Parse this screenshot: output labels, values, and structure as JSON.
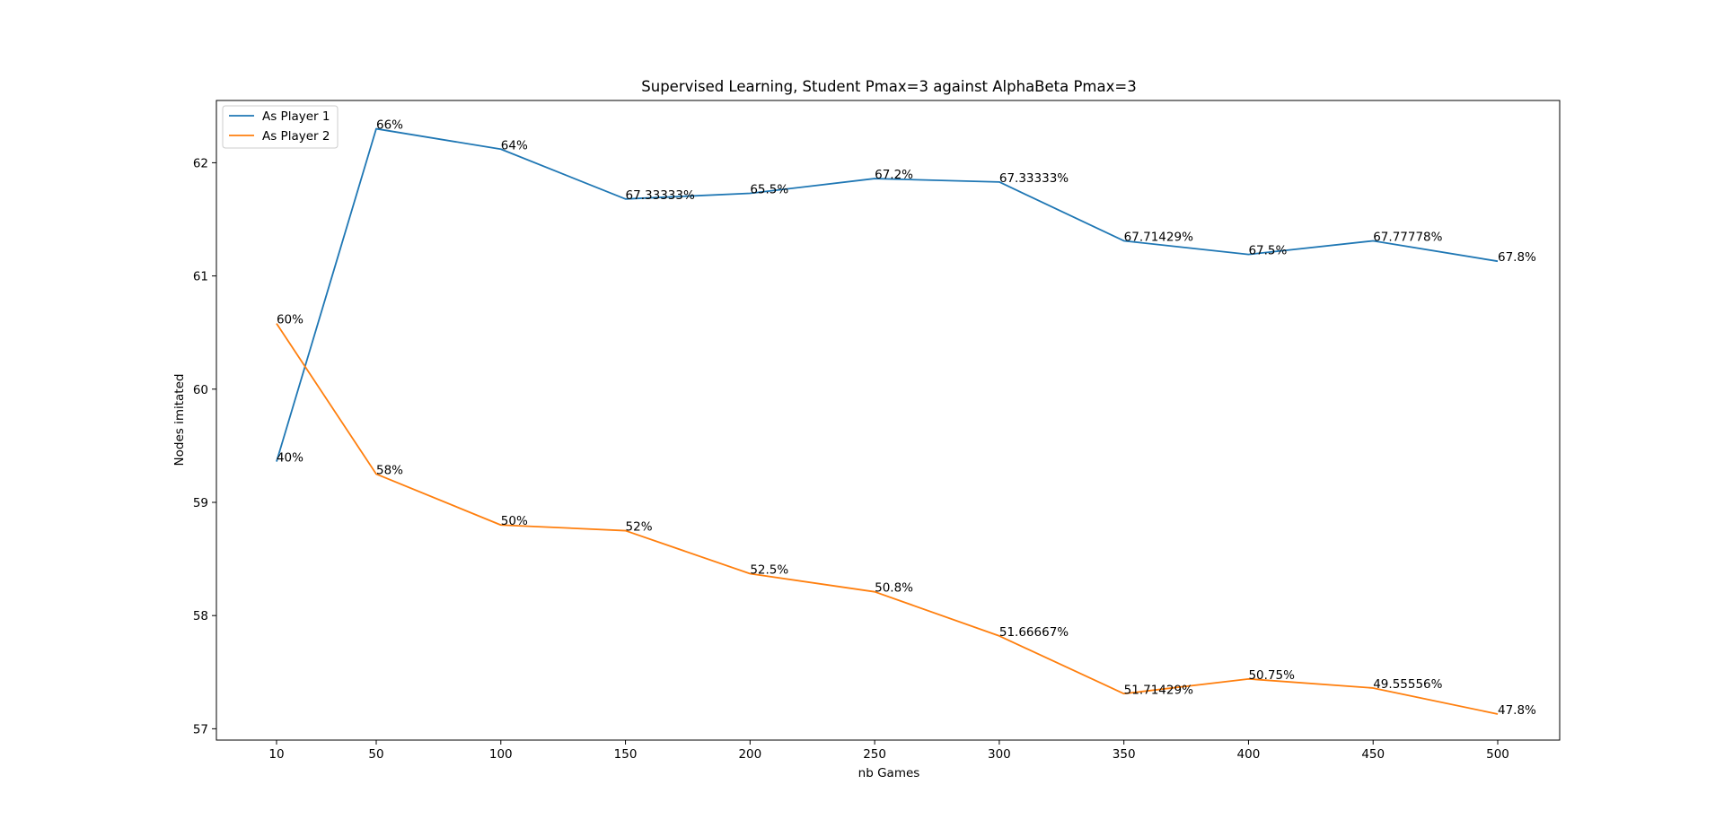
{
  "chart_data": {
    "type": "line",
    "title": "Supervised Learning, Student Pmax=3 against AlphaBeta Pmax=3",
    "xlabel": "nb Games",
    "ylabel": "Nodes imitated",
    "categories": [
      "10",
      "50",
      "100",
      "150",
      "200",
      "250",
      "300",
      "350",
      "400",
      "450",
      "500"
    ],
    "x": [
      10,
      50,
      100,
      150,
      200,
      250,
      300,
      350,
      400,
      450,
      500
    ],
    "yticks": [
      "57",
      "58",
      "59",
      "60",
      "61",
      "62"
    ],
    "ylim": [
      56.9,
      62.55
    ],
    "grid": false,
    "legend_position": "top-left",
    "series": [
      {
        "name": "As Player 1",
        "color": "#1f77b4",
        "values": [
          59.36,
          62.3,
          62.12,
          61.68,
          61.73,
          61.86,
          61.83,
          61.31,
          61.19,
          61.31,
          61.13
        ],
        "labels": [
          "40%",
          "66%",
          "64%",
          "67.33333%",
          "65.5%",
          "67.2%",
          "67.33333%",
          "67.71429%",
          "67.5%",
          "67.77778%",
          "67.8%"
        ]
      },
      {
        "name": "As Player 2",
        "color": "#ff7f0e",
        "values": [
          60.58,
          59.25,
          58.8,
          58.75,
          58.37,
          58.21,
          57.82,
          57.31,
          57.44,
          57.36,
          57.13
        ],
        "labels": [
          "60%",
          "58%",
          "50%",
          "52%",
          "52.5%",
          "50.8%",
          "51.66667%",
          "51.71429%",
          "50.75%",
          "49.55556%",
          "47.8%"
        ]
      }
    ]
  }
}
